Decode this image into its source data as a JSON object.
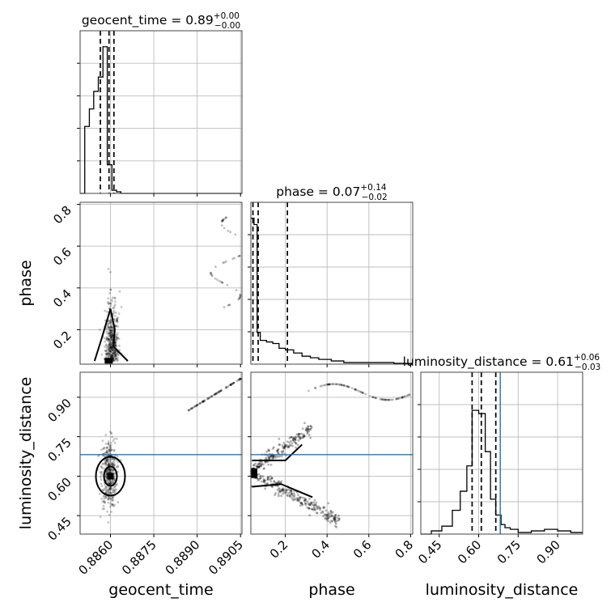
{
  "chart_data": {
    "type": "corner",
    "parameters": [
      "geocent_time",
      "phase",
      "luminosity_distance"
    ],
    "axis_labels": {
      "geocent_time": "geocent_time",
      "phase": "phase",
      "luminosity_distance": "luminosity_distance"
    },
    "titles": [
      {
        "param": "geocent_time",
        "text": "geocent_time = 0.89",
        "sup": "+0.00",
        "sub": "−0.00"
      },
      {
        "param": "phase",
        "text": "phase = 0.07",
        "sup": "+0.14",
        "sub": "−0.02"
      },
      {
        "param": "luminosity_distance",
        "text": "luminosity_distance = 0.61",
        "sup": "+0.06",
        "sub": "−0.03"
      }
    ],
    "ranges": {
      "geocent_time": [
        0.88495,
        0.89055
      ],
      "phase": [
        0.035,
        0.81
      ],
      "luminosity_distance": [
        0.38,
        0.995
      ]
    },
    "ticks": {
      "geocent_time": {
        "values": [
          0.886,
          0.8875,
          0.889,
          0.8905
        ],
        "labels": [
          "0.8860",
          "0.8875",
          "0.8890",
          "0.8905"
        ]
      },
      "phase": {
        "values": [
          0.2,
          0.4,
          0.6,
          0.8
        ],
        "labels": [
          "0.2",
          "0.4",
          "0.6",
          "0.8"
        ]
      },
      "luminosity_distance": {
        "values": [
          0.45,
          0.6,
          0.75,
          0.9
        ],
        "labels": [
          "0.45",
          "0.60",
          "0.75",
          "0.90"
        ]
      }
    },
    "truth": {
      "luminosity_distance": 0.682
    },
    "quantiles": {
      "geocent_time": [
        0.88565,
        0.88595,
        0.88612
      ],
      "phase": [
        0.045,
        0.07,
        0.21
      ],
      "luminosity_distance": [
        0.575,
        0.61,
        0.665
      ]
    },
    "histograms": {
      "geocent_time": {
        "edges": [
          0.88495,
          0.88511,
          0.88527,
          0.88542,
          0.88558,
          0.88574,
          0.88589,
          0.88605,
          0.88621,
          0.88636,
          0.88652,
          0.88668,
          0.88683,
          0.88699,
          0.89055
        ],
        "counts": [
          0,
          0.42,
          0.53,
          0.64,
          0.73,
          0.92,
          0.18,
          0.02,
          0.01,
          0,
          0,
          0,
          0,
          0
        ]
      },
      "phase": {
        "edges": [
          0.035,
          0.05,
          0.065,
          0.08,
          0.11,
          0.14,
          0.17,
          0.2,
          0.24,
          0.28,
          0.32,
          0.36,
          0.42,
          0.48,
          0.56,
          0.64,
          0.72,
          0.81
        ],
        "counts": [
          0.92,
          0.88,
          0.2,
          0.15,
          0.14,
          0.13,
          0.1,
          0.09,
          0.07,
          0.05,
          0.04,
          0.03,
          0.02,
          0.01,
          0.01,
          0.01,
          0.005
        ]
      },
      "luminosity_distance": {
        "edges": [
          0.38,
          0.42,
          0.46,
          0.5,
          0.53,
          0.555,
          0.575,
          0.6,
          0.625,
          0.645,
          0.665,
          0.685,
          0.7,
          0.72,
          0.75,
          0.8,
          0.85,
          0.9,
          0.95,
          0.995
        ],
        "counts": [
          0,
          0.02,
          0.05,
          0.15,
          0.27,
          0.43,
          0.78,
          0.76,
          0.52,
          0.22,
          0.12,
          0.06,
          0.04,
          0.03,
          0.01,
          0.02,
          0.03,
          0.02,
          0.01
        ]
      }
    },
    "grid": true
  }
}
